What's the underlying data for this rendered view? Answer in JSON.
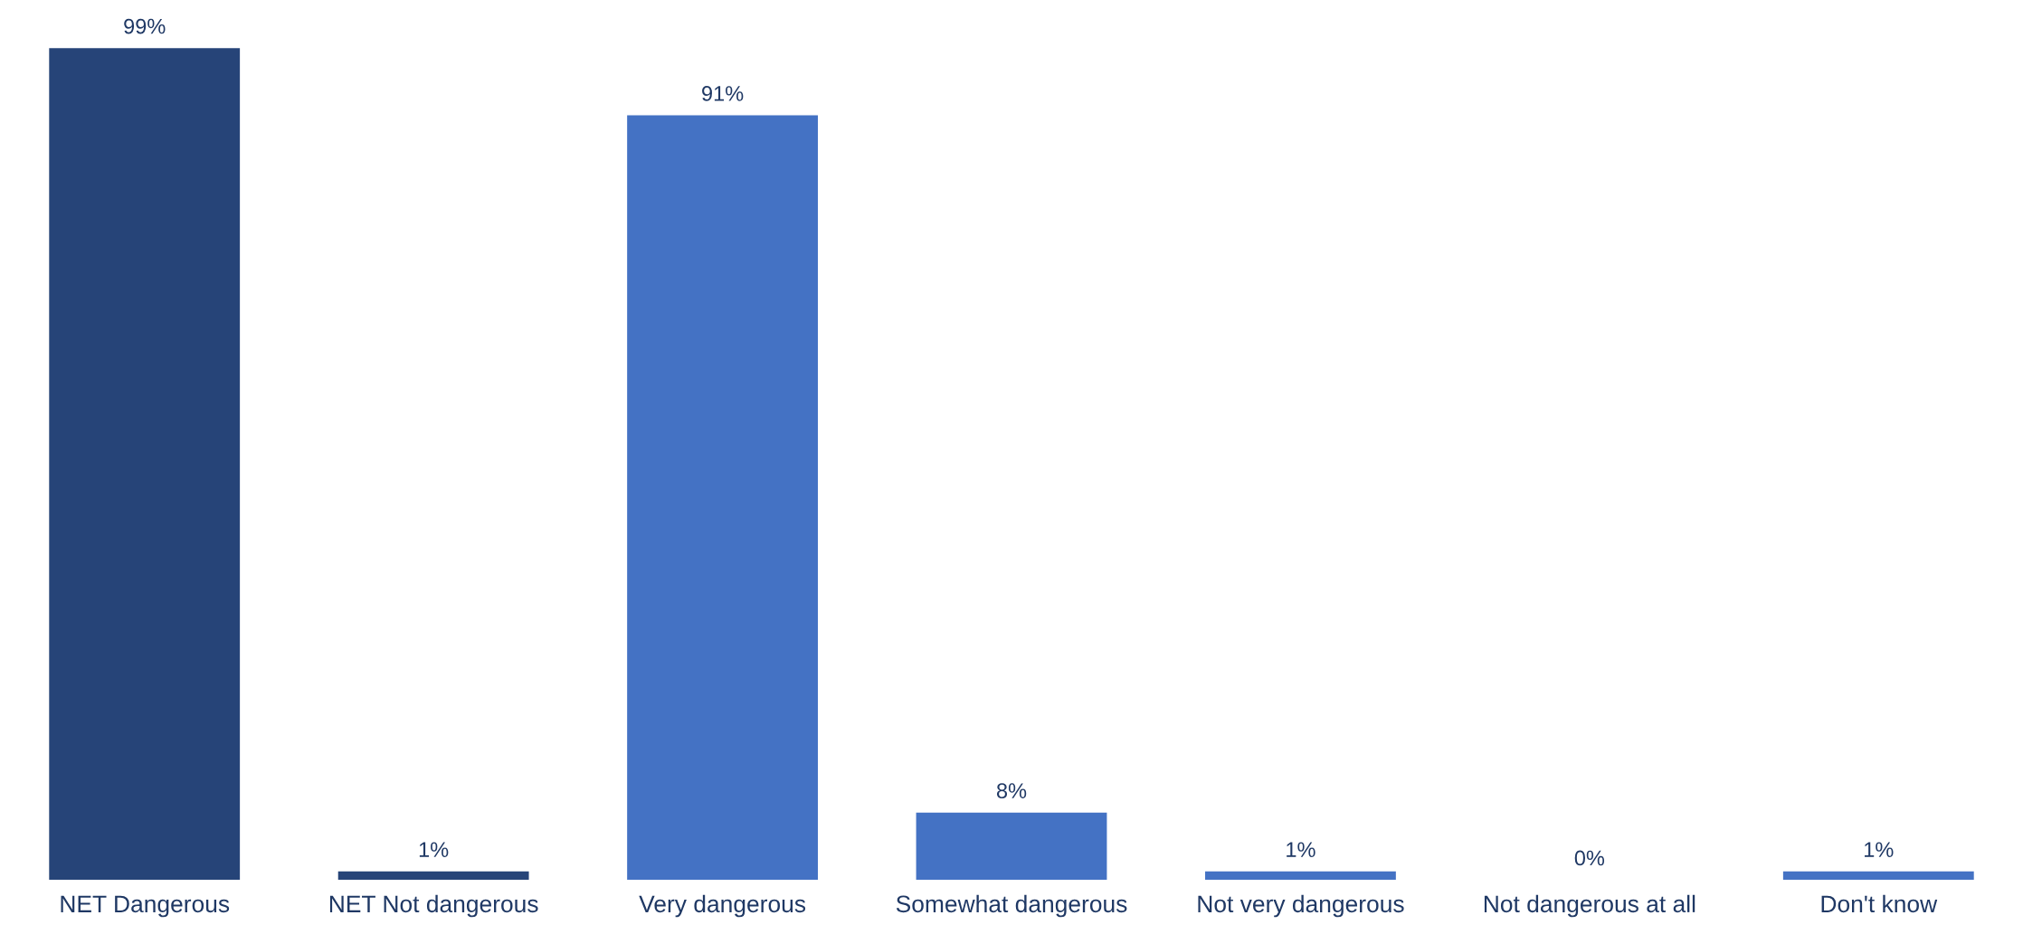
{
  "chart_data": {
    "type": "bar",
    "categories": [
      "NET Dangerous",
      "NET Not dangerous",
      "Very dangerous",
      "Somewhat dangerous",
      "Not very dangerous",
      "Not dangerous at all",
      "Don't know"
    ],
    "values": [
      99,
      1,
      91,
      8,
      1,
      0,
      1
    ],
    "colors": [
      "#264478",
      "#264478",
      "#4472c4",
      "#4472c4",
      "#4472c4",
      "#4472c4",
      "#4472c4"
    ],
    "value_labels": [
      "99%",
      "1%",
      "91%",
      "8%",
      "1%",
      "0%",
      "1%"
    ],
    "grid": false,
    "legend": false
  }
}
